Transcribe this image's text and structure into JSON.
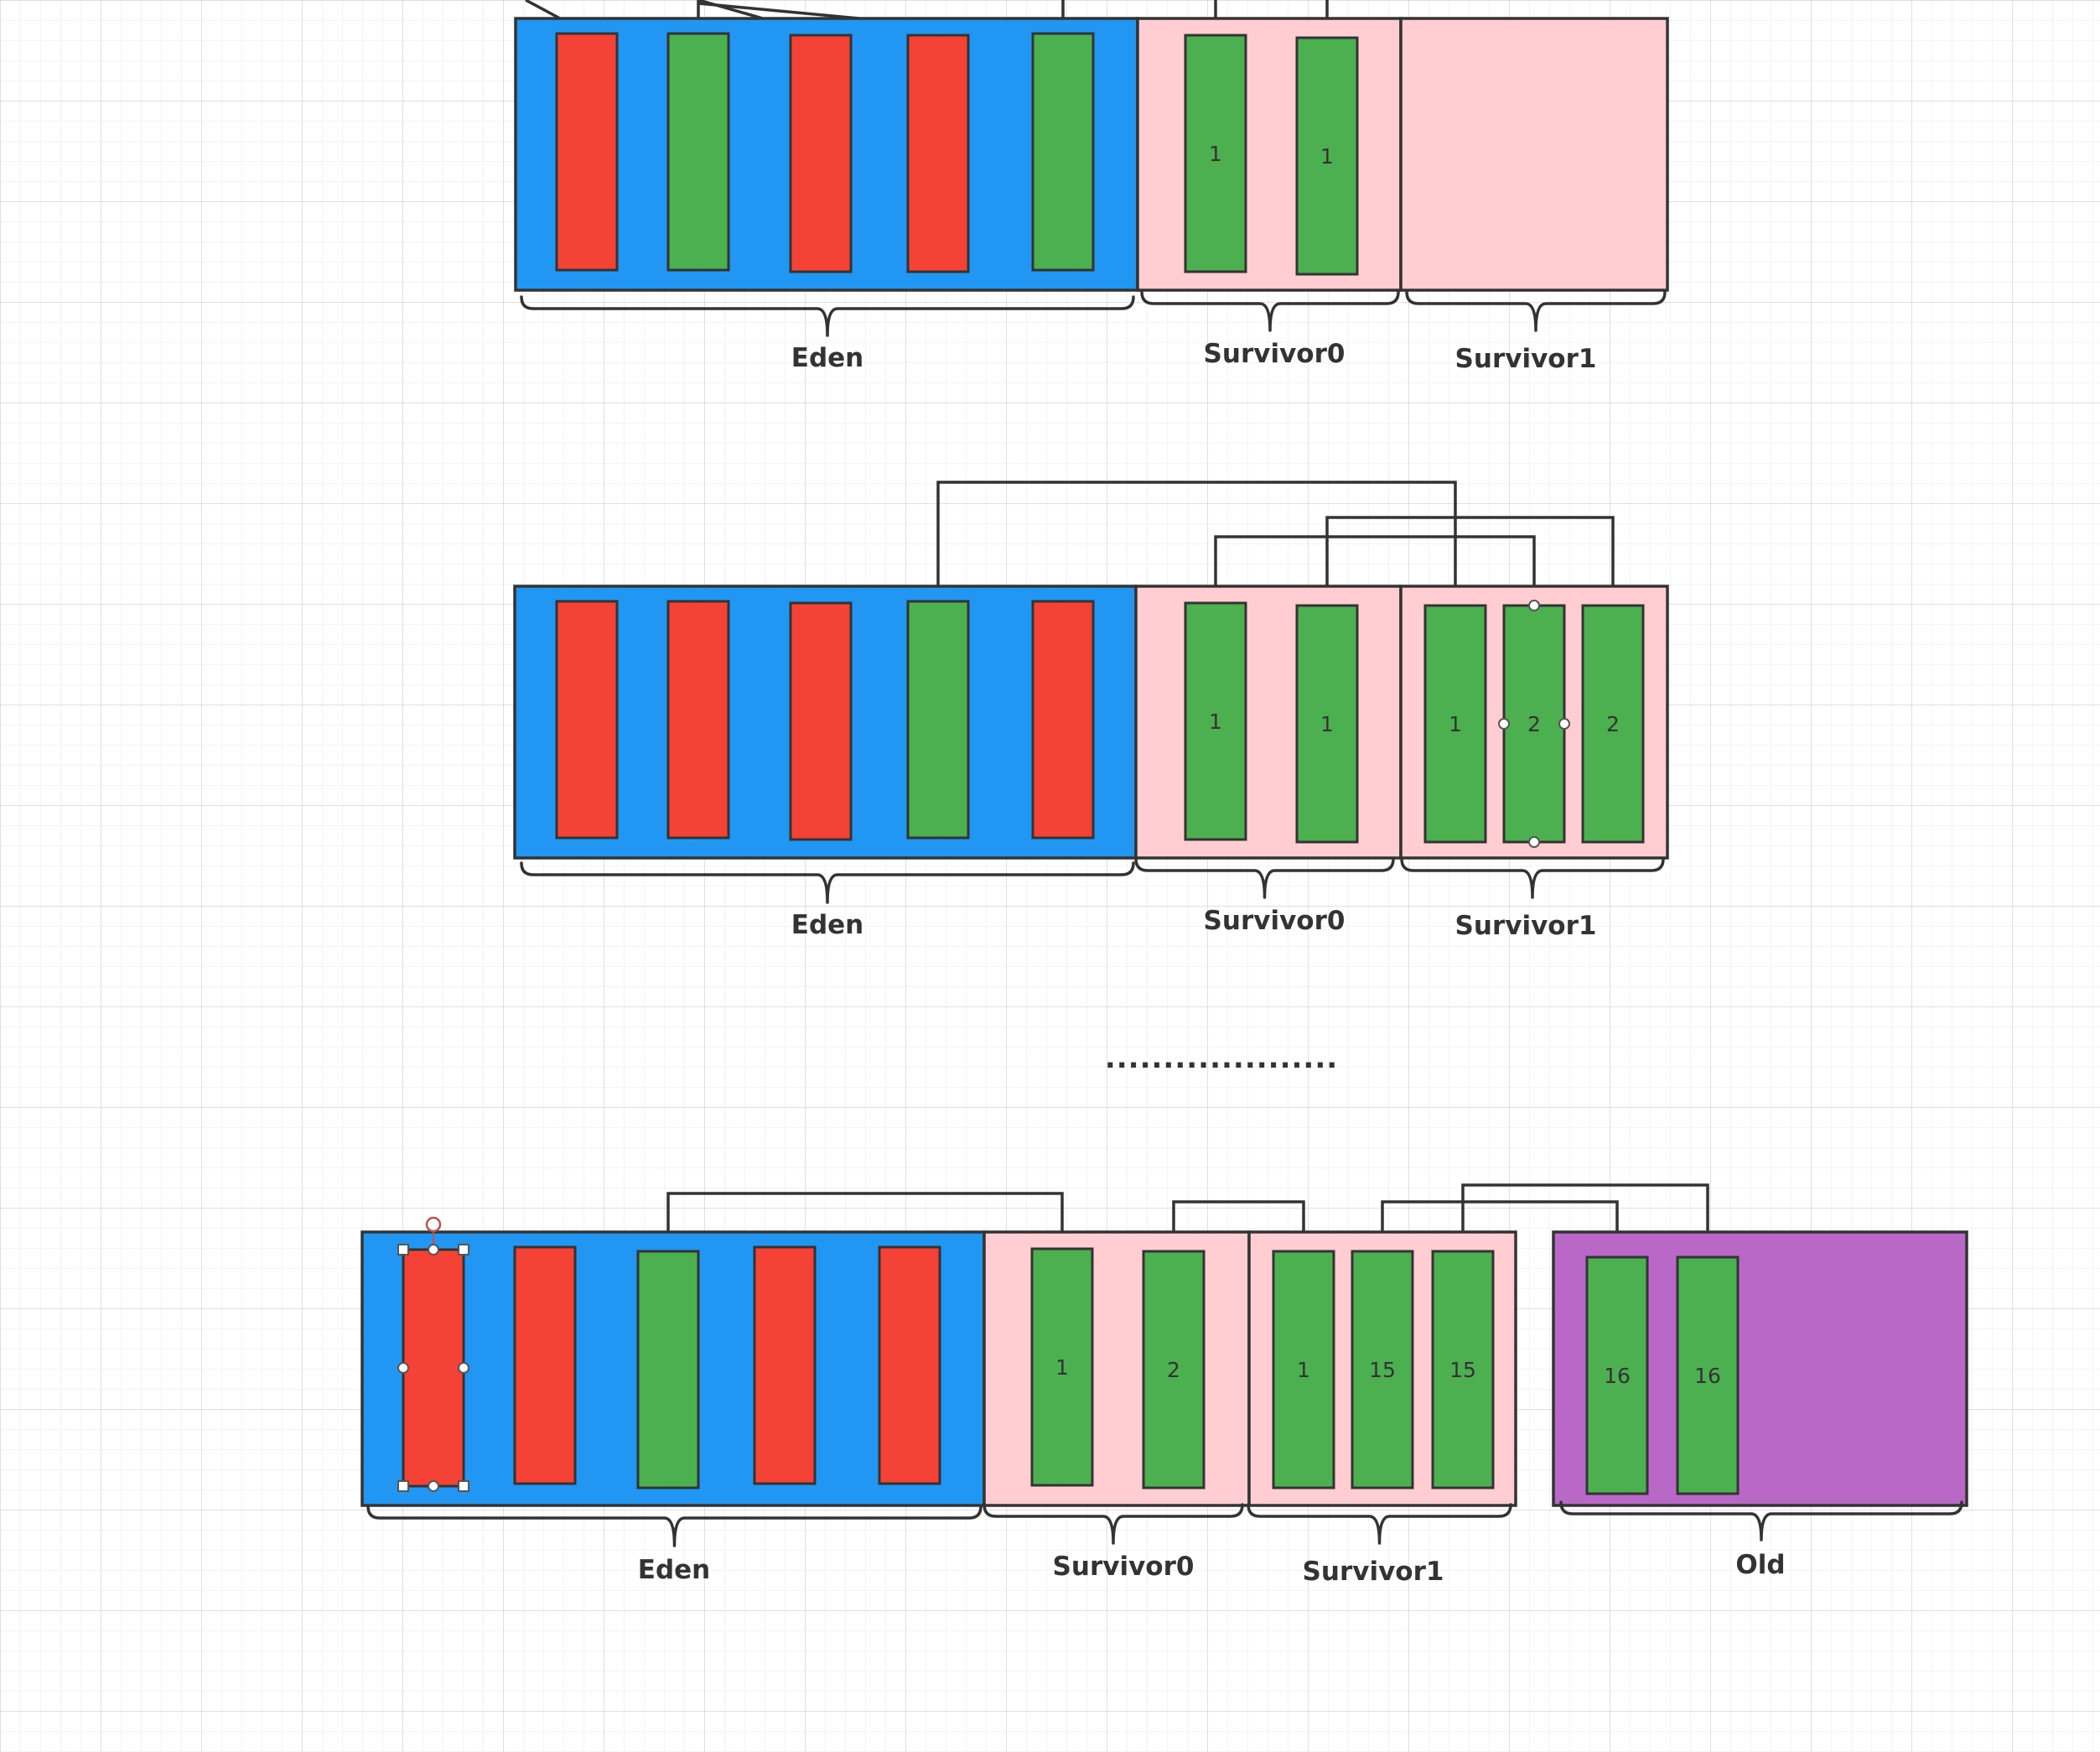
{
  "colors": {
    "eden": "#2196F3",
    "survivor": "#FFCDD2",
    "old": "#BA68C8",
    "live_object": "#4CAF50",
    "garbage_object": "#F44336",
    "stroke": "#333333"
  },
  "ellipsis": "....................",
  "diagrams": [
    {
      "id": "stage-1",
      "regions": [
        {
          "id": "eden",
          "label": "Eden",
          "color_key": "eden",
          "blocks": [
            {
              "state": "garbage",
              "age": ""
            },
            {
              "state": "live",
              "age": ""
            },
            {
              "state": "garbage",
              "age": ""
            },
            {
              "state": "garbage",
              "age": ""
            },
            {
              "state": "live",
              "age": ""
            }
          ]
        },
        {
          "id": "survivor0",
          "label": "Survivor0",
          "color_key": "survivor",
          "blocks": [
            {
              "state": "live",
              "age": "1"
            },
            {
              "state": "live",
              "age": "1"
            }
          ]
        },
        {
          "id": "survivor1",
          "label": "Survivor1",
          "color_key": "survivor",
          "blocks": []
        }
      ]
    },
    {
      "id": "stage-2",
      "regions": [
        {
          "id": "eden",
          "label": "Eden",
          "color_key": "eden",
          "blocks": [
            {
              "state": "garbage",
              "age": ""
            },
            {
              "state": "garbage",
              "age": ""
            },
            {
              "state": "garbage",
              "age": ""
            },
            {
              "state": "live",
              "age": ""
            },
            {
              "state": "garbage",
              "age": ""
            }
          ]
        },
        {
          "id": "survivor0",
          "label": "Survivor0",
          "color_key": "survivor",
          "blocks": [
            {
              "state": "live",
              "age": "1"
            },
            {
              "state": "live",
              "age": "1"
            }
          ]
        },
        {
          "id": "survivor1",
          "label": "Survivor1",
          "color_key": "survivor",
          "blocks": [
            {
              "state": "live",
              "age": "1"
            },
            {
              "state": "live",
              "age": "2"
            },
            {
              "state": "live",
              "age": "2"
            }
          ]
        }
      ]
    },
    {
      "id": "stage-3",
      "regions": [
        {
          "id": "eden",
          "label": "Eden",
          "color_key": "eden",
          "blocks": [
            {
              "state": "garbage",
              "age": ""
            },
            {
              "state": "garbage",
              "age": ""
            },
            {
              "state": "live",
              "age": ""
            },
            {
              "state": "garbage",
              "age": ""
            },
            {
              "state": "garbage",
              "age": ""
            }
          ]
        },
        {
          "id": "survivor0",
          "label": "Survivor0",
          "color_key": "survivor",
          "blocks": [
            {
              "state": "live",
              "age": "1"
            },
            {
              "state": "live",
              "age": "2"
            }
          ]
        },
        {
          "id": "survivor1",
          "label": "Survivor1",
          "color_key": "survivor",
          "blocks": [
            {
              "state": "live",
              "age": "1"
            },
            {
              "state": "live",
              "age": "15"
            },
            {
              "state": "live",
              "age": "15"
            }
          ]
        },
        {
          "id": "old",
          "label": "Old",
          "color_key": "old",
          "blocks": [
            {
              "state": "live",
              "age": "16"
            },
            {
              "state": "live",
              "age": "16"
            }
          ]
        }
      ]
    }
  ]
}
